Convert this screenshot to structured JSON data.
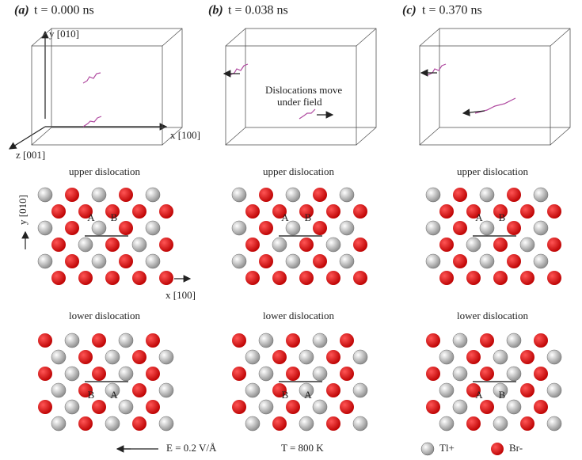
{
  "panels": [
    {
      "label": "(a)",
      "time": "t = 0.000 ns",
      "upper_title": "upper dislocation",
      "lower_title": "lower dislocation",
      "upper_sites": [
        "A",
        "B"
      ],
      "lower_sites": [
        "B",
        "A"
      ]
    },
    {
      "label": "(b)",
      "time": "t = 0.038 ns",
      "upper_title": "upper dislocation",
      "lower_title": "lower dislocation",
      "upper_sites": [
        "A",
        "B"
      ],
      "lower_sites": [
        "B",
        "A"
      ]
    },
    {
      "label": "(c)",
      "time": "t = 0.370 ns",
      "upper_title": "upper dislocation",
      "lower_title": "lower dislocation",
      "upper_sites": [
        "A",
        "B"
      ],
      "lower_sites": [
        "A",
        "B"
      ]
    }
  ],
  "box_axes": {
    "y": "y [010]",
    "x": "x [100]",
    "z": "z [001]"
  },
  "lattice_axes": {
    "y": "y [010]",
    "x": "x [100]"
  },
  "annotation": [
    "Dislocations move",
    "under field"
  ],
  "footer": {
    "field": "E = 0.2 V/Å",
    "temperature": "T = 800 K",
    "legend": [
      "Tl+",
      "Br-"
    ]
  }
}
